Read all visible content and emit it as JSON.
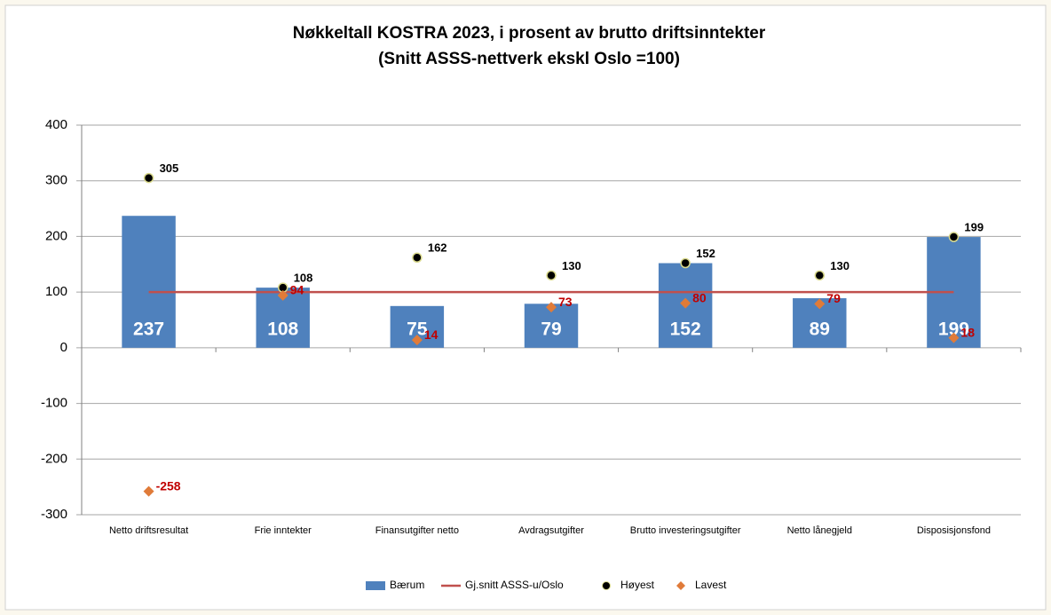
{
  "chart_data": {
    "type": "bar",
    "title": "Nøkkeltall KOSTRA 2023, i prosent av brutto driftsinntekter",
    "subtitle": "(Snitt ASSS-nettverk ekskl Oslo =100)",
    "categories": [
      "Netto driftsresultat",
      "Frie inntekter",
      "Finansutgifter netto",
      "Avdragsutgifter",
      "Brutto investeringsutgifter",
      "Netto lånegjeld",
      "Disposisjonsfond"
    ],
    "series": [
      {
        "name": "Bærum",
        "type": "bar",
        "color": "#4f81bd",
        "values": [
          237,
          108,
          75,
          79,
          152,
          89,
          199
        ]
      },
      {
        "name": "Gj.snitt ASSS-u/Oslo",
        "type": "line",
        "color": "#c0504d",
        "values": [
          100,
          100,
          100,
          100,
          100,
          100,
          100
        ]
      },
      {
        "name": "Høyest",
        "type": "scatter",
        "marker": "circle",
        "color": "#000000",
        "values": [
          305,
          108,
          162,
          130,
          152,
          130,
          199
        ]
      },
      {
        "name": "Lavest",
        "type": "scatter",
        "marker": "diamond",
        "color": "#e07b39",
        "values": [
          -258,
          94,
          14,
          73,
          80,
          79,
          18
        ]
      }
    ],
    "ylim": [
      -300,
      400
    ],
    "yticks": [
      -300,
      -200,
      -100,
      0,
      100,
      200,
      300,
      400
    ],
    "grid": true,
    "legend": "bottom"
  }
}
